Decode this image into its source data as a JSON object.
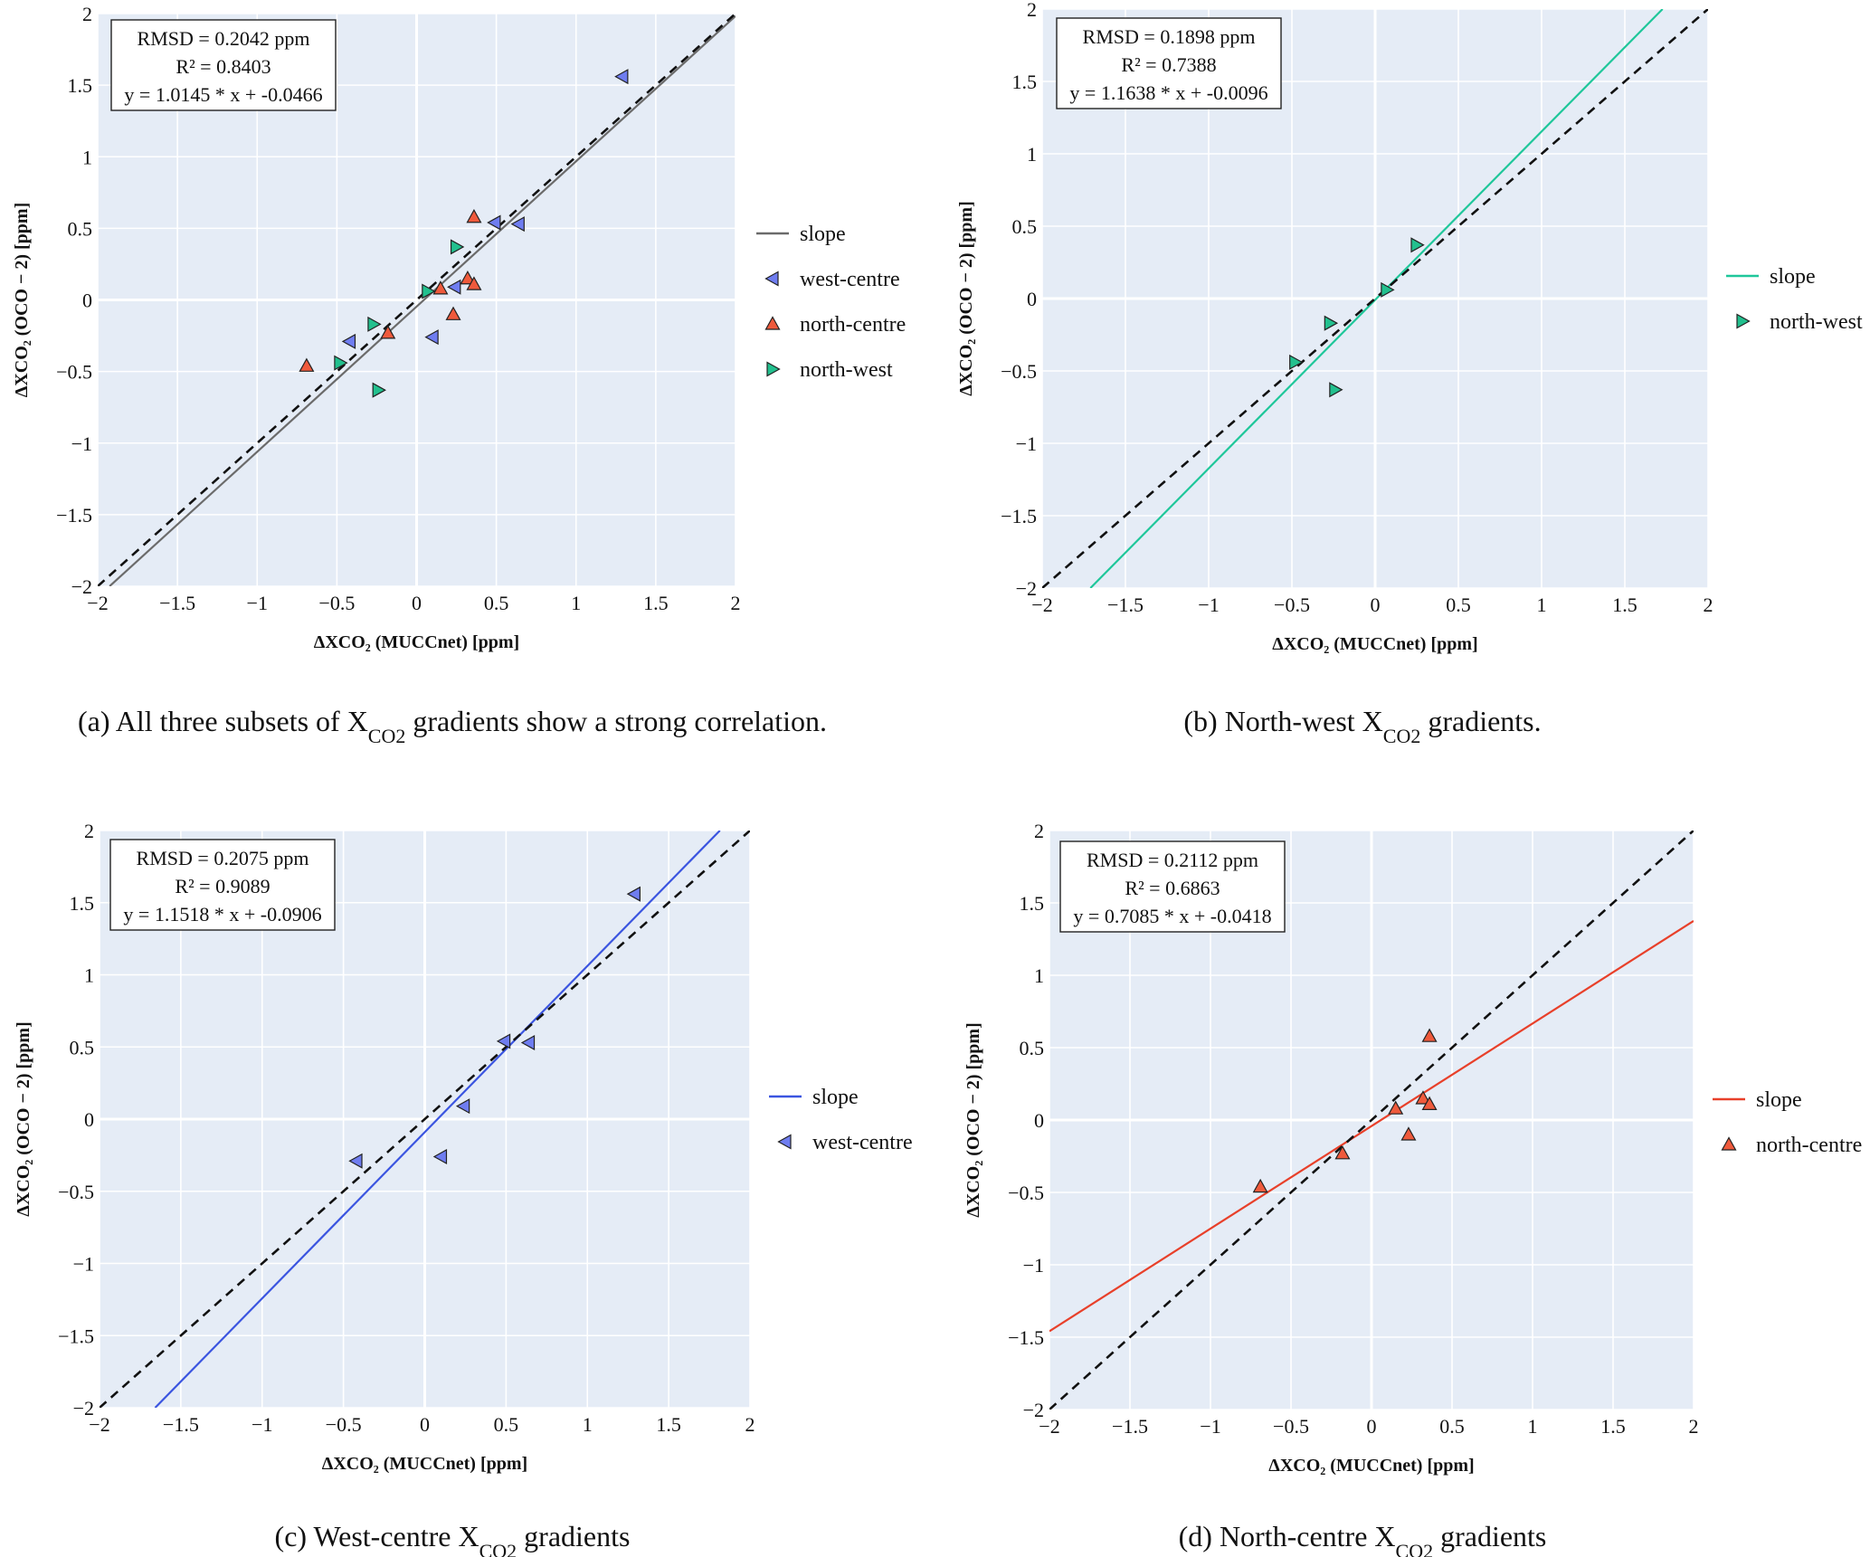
{
  "panels": [
    {
      "id": "a",
      "caption": {
        "pre": "(a) All three subsets of X",
        "sub": "CO2",
        "post": " gradients show a strong correlation."
      },
      "stats": [
        "RMSD = 0.2042 ppm",
        "R² = 0.8403",
        "y = 1.0145 * x + -0.0466"
      ],
      "legend": [
        "slope",
        "west-centre",
        "north-centre",
        "north-west"
      ]
    },
    {
      "id": "b",
      "caption": {
        "pre": "(b) North-west X",
        "sub": "CO2",
        "post": " gradients."
      },
      "stats": [
        "RMSD = 0.1898 ppm",
        "R² = 0.7388",
        "y = 1.1638 * x + -0.0096"
      ],
      "legend": [
        "slope",
        "north-west"
      ]
    },
    {
      "id": "c",
      "caption": {
        "pre": "(c) West-centre X",
        "sub": "CO2",
        "post": " gradients"
      },
      "stats": [
        "RMSD = 0.2075 ppm",
        "R² = 0.9089",
        "y = 1.1518 * x + -0.0906"
      ],
      "legend": [
        "slope",
        "west-centre"
      ]
    },
    {
      "id": "d",
      "caption": {
        "pre": "(d) North-centre X",
        "sub": "CO2",
        "post": " gradients"
      },
      "stats": [
        "RMSD = 0.2112 ppm",
        "R² = 0.6863",
        "y = 0.7085 * x + -0.0418"
      ],
      "legend": [
        "slope",
        "north-centre"
      ]
    }
  ],
  "chart_data": [
    {
      "type": "scatter",
      "panel": "a",
      "xlabel": "ΔXCO₂ (MUCCnet) [ppm]",
      "ylabel": "ΔXCO₂ (OCO − 2) [ppm]",
      "xlim": [
        -2,
        2
      ],
      "ylim": [
        -2,
        2
      ],
      "xticks": [
        "−2",
        "−1.5",
        "−1",
        "−0.5",
        "0",
        "0.5",
        "1",
        "1.5",
        "2"
      ],
      "yticks": [
        "−2",
        "−1.5",
        "−1",
        "−0.5",
        "0",
        "0.5",
        "1",
        "1.5",
        "2"
      ],
      "grid": true,
      "legend_position": "right",
      "identity_line": true,
      "fit": {
        "slope": 1.0145,
        "intercept": -0.0466,
        "color": "#6b6b6b"
      },
      "series": [
        {
          "name": "west-centre",
          "marker": "triangle-left",
          "color": "#6f7df0",
          "points": [
            [
              1.29,
              1.56
            ],
            [
              0.49,
              0.54
            ],
            [
              0.64,
              0.53
            ],
            [
              0.24,
              0.09
            ],
            [
              -0.42,
              -0.29
            ],
            [
              0.1,
              -0.26
            ]
          ]
        },
        {
          "name": "north-centre",
          "marker": "triangle-up",
          "color": "#ef5a3c",
          "points": [
            [
              0.36,
              0.58
            ],
            [
              0.32,
              0.15
            ],
            [
              0.36,
              0.11
            ],
            [
              0.15,
              0.08
            ],
            [
              0.23,
              -0.1
            ],
            [
              -0.18,
              -0.23
            ],
            [
              -0.69,
              -0.46
            ]
          ]
        },
        {
          "name": "north-west",
          "marker": "triangle-right",
          "color": "#22c08e",
          "points": [
            [
              0.25,
              0.37
            ],
            [
              0.07,
              0.06
            ],
            [
              -0.27,
              -0.17
            ],
            [
              -0.48,
              -0.44
            ],
            [
              -0.24,
              -0.63
            ]
          ]
        }
      ]
    },
    {
      "type": "scatter",
      "panel": "b",
      "xlabel": "ΔXCO₂ (MUCCnet) [ppm]",
      "ylabel": "ΔXCO₂ (OCO − 2) [ppm]",
      "xlim": [
        -2,
        2
      ],
      "ylim": [
        -2,
        2
      ],
      "xticks": [
        "−2",
        "−1.5",
        "−1",
        "−0.5",
        "0",
        "0.5",
        "1",
        "1.5",
        "2"
      ],
      "yticks": [
        "−2",
        "−1.5",
        "−1",
        "−0.5",
        "0",
        "0.5",
        "1",
        "1.5",
        "2"
      ],
      "grid": true,
      "legend_position": "right",
      "identity_line": true,
      "fit": {
        "slope": 1.1638,
        "intercept": -0.0096,
        "color": "#1fc79a"
      },
      "series": [
        {
          "name": "north-west",
          "marker": "triangle-right",
          "color": "#22c08e",
          "points": [
            [
              0.25,
              0.37
            ],
            [
              0.07,
              0.06
            ],
            [
              -0.27,
              -0.17
            ],
            [
              -0.48,
              -0.44
            ],
            [
              -0.24,
              -0.63
            ]
          ]
        }
      ]
    },
    {
      "type": "scatter",
      "panel": "c",
      "xlabel": "ΔXCO₂ (MUCCnet) [ppm]",
      "ylabel": "ΔXCO₂ (OCO − 2) [ppm]",
      "xlim": [
        -2,
        2
      ],
      "ylim": [
        -2,
        2
      ],
      "xticks": [
        "−2",
        "−1.5",
        "−1",
        "−0.5",
        "0",
        "0.5",
        "1",
        "1.5",
        "2"
      ],
      "yticks": [
        "−2",
        "−1.5",
        "−1",
        "−0.5",
        "0",
        "0.5",
        "1",
        "1.5",
        "2"
      ],
      "grid": true,
      "legend_position": "right",
      "identity_line": true,
      "fit": {
        "slope": 1.1518,
        "intercept": -0.0906,
        "color": "#3b55e0"
      },
      "series": [
        {
          "name": "west-centre",
          "marker": "triangle-left",
          "color": "#6f7df0",
          "points": [
            [
              1.29,
              1.56
            ],
            [
              0.49,
              0.54
            ],
            [
              0.64,
              0.53
            ],
            [
              0.24,
              0.09
            ],
            [
              -0.42,
              -0.29
            ],
            [
              0.1,
              -0.26
            ]
          ]
        }
      ]
    },
    {
      "type": "scatter",
      "panel": "d",
      "xlabel": "ΔXCO₂ (MUCCnet) [ppm]",
      "ylabel": "ΔXCO₂ (OCO − 2) [ppm]",
      "xlim": [
        -2,
        2
      ],
      "ylim": [
        -2,
        2
      ],
      "xticks": [
        "−2",
        "−1.5",
        "−1",
        "−0.5",
        "0",
        "0.5",
        "1",
        "1.5",
        "2"
      ],
      "yticks": [
        "−2",
        "−1.5",
        "−1",
        "−0.5",
        "0",
        "0.5",
        "1",
        "1.5",
        "2"
      ],
      "grid": true,
      "legend_position": "right",
      "identity_line": true,
      "fit": {
        "slope": 0.7085,
        "intercept": -0.0418,
        "color": "#e8402a"
      },
      "series": [
        {
          "name": "north-centre",
          "marker": "triangle-up",
          "color": "#ef5a3c",
          "points": [
            [
              0.36,
              0.58
            ],
            [
              0.32,
              0.15
            ],
            [
              0.36,
              0.11
            ],
            [
              0.15,
              0.08
            ],
            [
              0.23,
              -0.1
            ],
            [
              -0.18,
              -0.23
            ],
            [
              -0.69,
              -0.46
            ]
          ]
        }
      ]
    }
  ]
}
